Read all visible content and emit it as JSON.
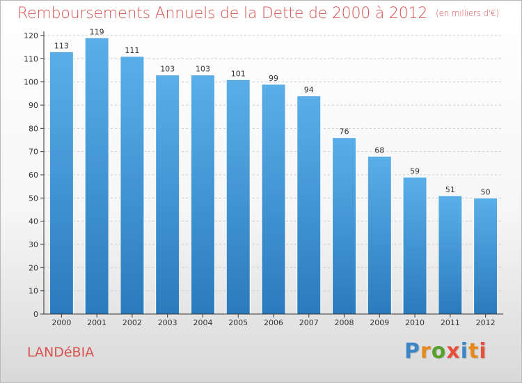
{
  "header": {
    "title": "Remboursements Annuels de la Dette de 2000 à 2012",
    "unit": "(en milliers d'€)"
  },
  "footer": {
    "town": "LANDéBIA",
    "logo_text": "Proxiti",
    "logo_colors": [
      "#3d86c6",
      "#e8891e",
      "#5aa02c",
      "#e84e3a",
      "#3d86c6",
      "#e8891e",
      "#e84e3a"
    ]
  },
  "colors": {
    "accent": "#d9534f",
    "bar_top": "#5aafe8",
    "bar_bottom": "#2a7bbd",
    "axis": "#333333",
    "grid": "#cccccc"
  },
  "chart_data": {
    "type": "bar",
    "title": "Remboursements Annuels de la Dette de 2000 à 2012",
    "subtitle": "(en milliers d'€)",
    "xlabel": "",
    "ylabel": "",
    "categories": [
      "2000",
      "2001",
      "2002",
      "2003",
      "2004",
      "2005",
      "2006",
      "2007",
      "2008",
      "2009",
      "2010",
      "2011",
      "2012"
    ],
    "values": [
      113,
      119,
      111,
      103,
      103,
      101,
      99,
      94,
      76,
      68,
      59,
      51,
      50
    ],
    "ylim": [
      0,
      120
    ],
    "yticks": [
      0,
      10,
      20,
      30,
      40,
      50,
      60,
      70,
      80,
      90,
      100,
      110,
      120
    ],
    "grid": true,
    "legend": "none"
  }
}
